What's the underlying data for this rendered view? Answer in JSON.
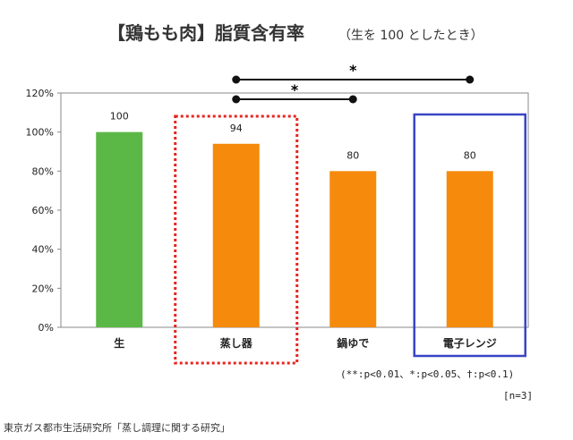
{
  "title": "【鶏もも肉】脂質含有率",
  "subtitle": "（生を 100 としたとき）",
  "note": "(**:p<0.01、*:p<0.05、†:p<0.1)",
  "n_label": "[n=3]",
  "source": "東京ガス都市生活研究所「蒸し調理に関する研究」",
  "colors": {
    "raw": "#5bb846",
    "cooked": "#f58a0c",
    "steamer_box": "#e8231d",
    "microwave_box": "#3a44c4",
    "bracket": "#111111"
  },
  "chart_data": {
    "type": "bar",
    "categories": [
      "生",
      "蒸し器",
      "鍋ゆで",
      "電子レンジ"
    ],
    "values": [
      100,
      94,
      80,
      80
    ],
    "value_labels": [
      "100",
      "94",
      "80",
      "80"
    ],
    "ylim": [
      0,
      120
    ],
    "yticks": [
      "0%",
      "20%",
      "40%",
      "60%",
      "80%",
      "100%",
      "120%"
    ],
    "grid": false,
    "significance": [
      {
        "from": "蒸し器",
        "to": "鍋ゆで",
        "label": "*"
      },
      {
        "from": "蒸し器",
        "to": "電子レンジ",
        "label": "*"
      }
    ]
  }
}
